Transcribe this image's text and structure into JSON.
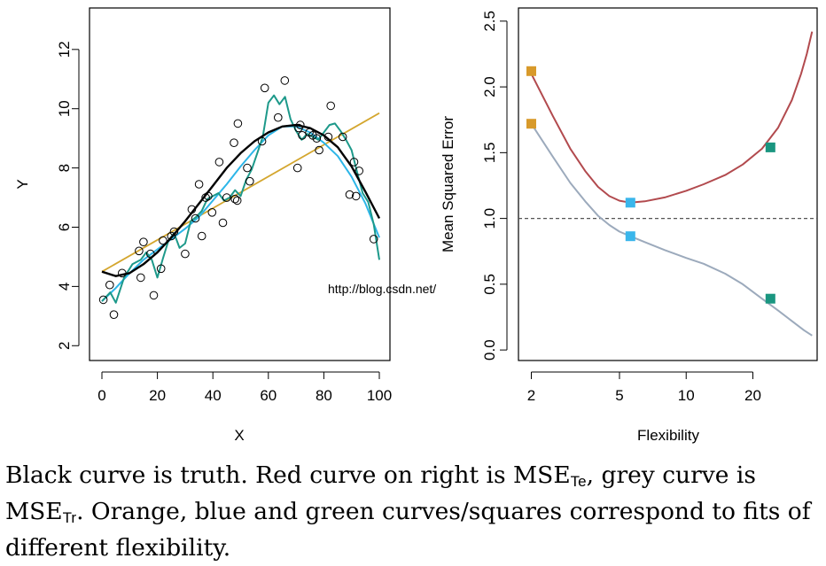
{
  "chart_data": [
    {
      "type": "scatter",
      "xlabel": "X",
      "ylabel": "Y",
      "xlim": [
        0,
        100
      ],
      "ylim": [
        1.5,
        13.4
      ],
      "xticks": [
        0,
        20,
        40,
        60,
        80,
        100
      ],
      "yticks": [
        2,
        4,
        6,
        8,
        10,
        12
      ],
      "grid": false,
      "points": [
        [
          0.5,
          3.55
        ],
        [
          2.8,
          4.05
        ],
        [
          4.3,
          3.05
        ],
        [
          7.3,
          4.45
        ],
        [
          13.4,
          5.2
        ],
        [
          14.0,
          4.3
        ],
        [
          15.0,
          5.5
        ],
        [
          17.5,
          5.1
        ],
        [
          18.7,
          3.7
        ],
        [
          21.3,
          4.6
        ],
        [
          22.0,
          5.55
        ],
        [
          25.0,
          5.7
        ],
        [
          26.0,
          5.85
        ],
        [
          30.0,
          5.1
        ],
        [
          32.4,
          6.6
        ],
        [
          33.7,
          6.3
        ],
        [
          35.0,
          7.45
        ],
        [
          36.0,
          5.7
        ],
        [
          37.4,
          7.0
        ],
        [
          38.3,
          7.05
        ],
        [
          39.7,
          6.5
        ],
        [
          42.3,
          8.2
        ],
        [
          43.6,
          6.15
        ],
        [
          45.0,
          7.0
        ],
        [
          47.6,
          8.85
        ],
        [
          48.0,
          6.95
        ],
        [
          48.8,
          6.9
        ],
        [
          49.0,
          9.5
        ],
        [
          52.4,
          8.0
        ],
        [
          53.3,
          7.55
        ],
        [
          57.7,
          8.9
        ],
        [
          58.7,
          10.7
        ],
        [
          63.5,
          9.7
        ],
        [
          65.9,
          10.95
        ],
        [
          70.5,
          8.0
        ],
        [
          70.9,
          9.35
        ],
        [
          71.5,
          9.45
        ],
        [
          72.2,
          9.1
        ],
        [
          74.8,
          9.2
        ],
        [
          76.0,
          9.1
        ],
        [
          77.4,
          9.0
        ],
        [
          78.3,
          8.6
        ],
        [
          81.6,
          9.05
        ],
        [
          82.5,
          10.1
        ],
        [
          86.8,
          9.05
        ],
        [
          89.3,
          7.1
        ],
        [
          90.9,
          8.2
        ],
        [
          91.6,
          7.05
        ],
        [
          92.7,
          7.9
        ],
        [
          98.0,
          5.6
        ]
      ],
      "series": [
        {
          "color": "#000000",
          "x": [
            0,
            5,
            10,
            15,
            20,
            25,
            30,
            35,
            40,
            45,
            50,
            55,
            60,
            65,
            70,
            75,
            80,
            85,
            90,
            95,
            100
          ],
          "y": [
            4.5,
            4.35,
            4.45,
            4.75,
            5.15,
            5.65,
            6.2,
            6.8,
            7.4,
            8.0,
            8.5,
            8.9,
            9.2,
            9.4,
            9.45,
            9.35,
            9.1,
            8.7,
            8.05,
            7.2,
            6.3
          ]
        },
        {
          "color": "#d4a62e",
          "x": [
            0,
            100
          ],
          "y": [
            4.5,
            9.85
          ]
        },
        {
          "color": "#2db6e8",
          "x": [
            0,
            5,
            10,
            15,
            20,
            25,
            30,
            35,
            40,
            45,
            50,
            55,
            60,
            65,
            70,
            75,
            80,
            85,
            90,
            95,
            100
          ],
          "y": [
            3.5,
            3.95,
            4.45,
            4.9,
            5.25,
            5.6,
            5.95,
            6.35,
            6.9,
            7.45,
            8.05,
            8.6,
            9.1,
            9.4,
            9.4,
            9.2,
            8.85,
            8.4,
            7.7,
            6.8,
            5.65
          ]
        },
        {
          "color": "#1d998a",
          "x": [
            0,
            3,
            5,
            8,
            11,
            14,
            16,
            18,
            20,
            22,
            24,
            26,
            28,
            30,
            32,
            34,
            36,
            38,
            40,
            42,
            44,
            46,
            48,
            50,
            52,
            54,
            56,
            58,
            60,
            62,
            64,
            66,
            68,
            70,
            72,
            74,
            76,
            78,
            80,
            82,
            84,
            86,
            88,
            90,
            92,
            94,
            96,
            98,
            100
          ],
          "y": [
            3.5,
            3.8,
            3.45,
            4.3,
            4.75,
            4.9,
            5.15,
            4.9,
            4.3,
            4.95,
            5.55,
            5.8,
            5.3,
            5.45,
            6.2,
            6.35,
            6.55,
            6.95,
            7.05,
            7.15,
            6.9,
            7.0,
            7.25,
            7.05,
            7.6,
            7.95,
            8.5,
            9.05,
            10.2,
            10.45,
            10.15,
            10.4,
            9.65,
            9.25,
            8.95,
            9.15,
            9.05,
            8.95,
            9.2,
            9.45,
            9.5,
            9.25,
            8.95,
            8.6,
            7.85,
            7.15,
            6.85,
            6.1,
            4.9
          ]
        }
      ]
    },
    {
      "type": "line",
      "xlabel": "Flexibility",
      "ylabel": "Mean Squared Error",
      "xscale": "log",
      "xlim": [
        1.75,
        39
      ],
      "ylim": [
        -0.08,
        2.6
      ],
      "xticks": [
        2,
        5,
        10,
        20
      ],
      "yticks": [
        0.0,
        0.5,
        1.0,
        1.5,
        2.0,
        2.5
      ],
      "tick_labels_y": [
        "0.0",
        "0.5",
        "1.0",
        "1.5",
        "2.0",
        "2.5"
      ],
      "grid": false,
      "reference_line": {
        "y": 1.0,
        "style": "dashed",
        "color": "#555555"
      },
      "series": [
        {
          "color": "#b24a4e",
          "x": [
            2,
            2.5,
            3,
            3.5,
            4,
            4.5,
            5,
            5.6,
            6.5,
            8,
            10,
            12,
            15,
            18,
            22,
            26,
            30,
            33,
            35,
            37
          ],
          "y": [
            2.1,
            1.78,
            1.53,
            1.36,
            1.24,
            1.17,
            1.135,
            1.12,
            1.13,
            1.16,
            1.21,
            1.26,
            1.33,
            1.41,
            1.53,
            1.69,
            1.9,
            2.1,
            2.25,
            2.42
          ]
        },
        {
          "color": "#9caabc",
          "x": [
            2,
            2.5,
            3,
            3.5,
            4,
            4.5,
            5,
            5.6,
            6.5,
            8,
            10,
            12,
            15,
            18,
            22,
            26,
            30,
            34,
            37
          ],
          "y": [
            1.72,
            1.47,
            1.27,
            1.13,
            1.02,
            0.95,
            0.9,
            0.865,
            0.82,
            0.76,
            0.7,
            0.655,
            0.58,
            0.5,
            0.39,
            0.3,
            0.22,
            0.15,
            0.11
          ]
        }
      ],
      "markers": [
        {
          "x": 2,
          "y": 2.12,
          "color": "#d89a2b"
        },
        {
          "x": 2,
          "y": 1.72,
          "color": "#d89a2b"
        },
        {
          "x": 5.6,
          "y": 1.12,
          "color": "#3ab6eb"
        },
        {
          "x": 5.6,
          "y": 0.865,
          "color": "#3ab6eb"
        },
        {
          "x": 24,
          "y": 1.54,
          "color": "#1a9680"
        },
        {
          "x": 24,
          "y": 0.39,
          "color": "#1a9680"
        }
      ]
    }
  ],
  "watermark": "http://blog.csdn.net/",
  "caption": {
    "part1": "Black curve is truth. Red curve on right is MSE",
    "sub1": "Te",
    "part2": ", grey curve is MSE",
    "sub2": "Tr",
    "part3": ". Orange, blue and green curves/squares correspond to fits of different flexibility."
  }
}
